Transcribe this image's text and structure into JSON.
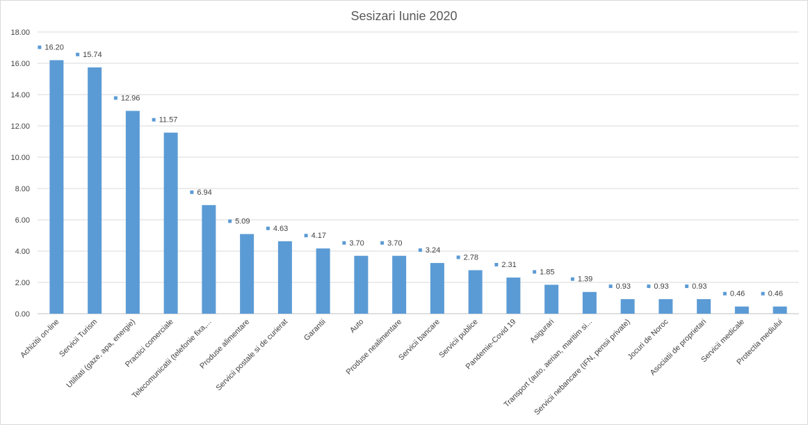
{
  "chart_data": {
    "type": "bar",
    "title": "Sesizari Iunie 2020",
    "xlabel": "",
    "ylabel": "",
    "ylim": [
      0,
      18
    ],
    "yticks": [
      "0.00",
      "2.00",
      "4.00",
      "6.00",
      "8.00",
      "10.00",
      "12.00",
      "14.00",
      "16.00",
      "18.00"
    ],
    "grid": true,
    "legend": "none",
    "bar_color": "#5b9bd5",
    "categories": [
      "Achizitii on-line",
      "Servicii Turism",
      "Utilitati (gaze, apa, energie)",
      "Practici comerciale",
      "Telecomunicatii (telefonie fixa,...",
      "Produse alimentare",
      "Servicii postale si de curierat",
      "Garantii",
      "Auto",
      "Produse nealimentare",
      "Servicii bancare",
      "Servicii publice",
      "Pandemie-Covid 19",
      "Asigurari",
      "Transport (auto, aerian, maritim si...",
      "Servicii nebancare (IFN, pensii private)",
      "Jocuri de Noroc",
      "Asociatii de proprietari",
      "Servicii medicale",
      "Protectia mediului"
    ],
    "values": [
      16.2,
      15.74,
      12.96,
      11.57,
      6.94,
      5.09,
      4.63,
      4.17,
      3.7,
      3.7,
      3.24,
      2.78,
      2.31,
      1.85,
      1.39,
      0.93,
      0.93,
      0.93,
      0.46,
      0.46
    ],
    "data_labels": [
      "16.20",
      "15.74",
      "12.96",
      "11.57",
      "6.94",
      "5.09",
      "4.63",
      "4.17",
      "3.70",
      "3.70",
      "3.24",
      "2.78",
      "2.31",
      "1.85",
      "1.39",
      "0.93",
      "0.93",
      "0.93",
      "0.46",
      "0.46"
    ]
  }
}
